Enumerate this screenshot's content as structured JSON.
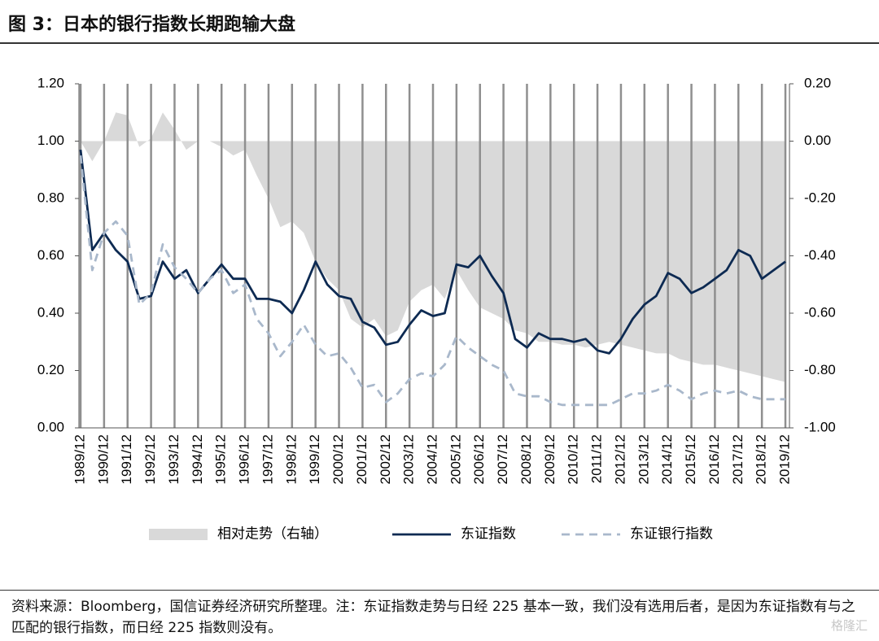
{
  "chart_data": {
    "type": "line",
    "title": "图 3：日本的银行指数长期跑输大盘",
    "source": "资料来源：Bloomberg，国信证券经济研究所整理。注：东证指数走势与日经 225 基本一致，我们没有选用后者，是因为东证指数有与之匹配的银行指数，而日经 225 指数则没有。",
    "watermark": "格隆汇",
    "categories": [
      "1989/12",
      null,
      "1990/12",
      null,
      "1991/12",
      null,
      "1992/12",
      null,
      "1993/12",
      null,
      "1994/12",
      null,
      "1995/12",
      null,
      "1996/12",
      null,
      "1997/12",
      null,
      "1998/12",
      null,
      "1999/12",
      null,
      "2000/12",
      null,
      "2001/12",
      null,
      "2002/12",
      null,
      "2003/12",
      null,
      "2004/12",
      null,
      "2005/12",
      null,
      "2006/12",
      null,
      "2007/12",
      null,
      "2008/12",
      null,
      "2009/12",
      null,
      "2010/12",
      null,
      "2011/12",
      null,
      "2012/12",
      null,
      "2013/12",
      null,
      "2014/12",
      null,
      "2015/12",
      null,
      "2016/12",
      null,
      "2017/12",
      null,
      "2018/12",
      null,
      "2019/12"
    ],
    "series": [
      {
        "name": "相对走势（右轴）",
        "type": "area",
        "axis": "y2",
        "color": "#d9d9d9",
        "values": [
          0.0,
          -0.07,
          0.0,
          0.1,
          0.09,
          -0.02,
          0.01,
          0.1,
          0.04,
          -0.03,
          0.0,
          0.0,
          -0.02,
          -0.05,
          -0.03,
          -0.12,
          -0.2,
          -0.3,
          -0.28,
          -0.32,
          -0.42,
          -0.48,
          -0.52,
          -0.62,
          -0.65,
          -0.62,
          -0.68,
          -0.66,
          -0.56,
          -0.52,
          -0.5,
          -0.55,
          -0.45,
          -0.52,
          -0.58,
          -0.6,
          -0.62,
          -0.66,
          -0.67,
          -0.7,
          -0.7,
          -0.71,
          -0.71,
          -0.72,
          -0.71,
          -0.7,
          -0.71,
          -0.72,
          -0.73,
          -0.74,
          -0.74,
          -0.76,
          -0.77,
          -0.78,
          -0.78,
          -0.79,
          -0.8,
          -0.81,
          -0.82,
          -0.83,
          -0.84
        ]
      },
      {
        "name": "东证指数",
        "type": "line",
        "color": "#0d2a52",
        "dashed": false,
        "values": [
          0.97,
          0.62,
          0.68,
          0.62,
          0.58,
          0.45,
          0.46,
          0.58,
          0.52,
          0.55,
          0.47,
          0.52,
          0.57,
          0.52,
          0.52,
          0.45,
          0.45,
          0.44,
          0.4,
          0.48,
          0.58,
          0.5,
          0.46,
          0.45,
          0.37,
          0.35,
          0.29,
          0.3,
          0.36,
          0.41,
          0.39,
          0.4,
          0.57,
          0.56,
          0.6,
          0.53,
          0.47,
          0.31,
          0.28,
          0.33,
          0.31,
          0.31,
          0.3,
          0.31,
          0.27,
          0.26,
          0.31,
          0.38,
          0.43,
          0.46,
          0.54,
          0.52,
          0.47,
          0.49,
          0.52,
          0.55,
          0.62,
          0.6,
          0.52,
          0.55,
          0.58
        ]
      },
      {
        "name": "东证银行指数",
        "type": "line",
        "color": "#a9b8cb",
        "dashed": true,
        "values": [
          0.95,
          0.55,
          0.68,
          0.72,
          0.67,
          0.43,
          0.47,
          0.64,
          0.56,
          0.52,
          0.47,
          0.52,
          0.55,
          0.47,
          0.5,
          0.38,
          0.33,
          0.25,
          0.3,
          0.36,
          0.29,
          0.25,
          0.26,
          0.21,
          0.14,
          0.15,
          0.09,
          0.12,
          0.17,
          0.19,
          0.18,
          0.22,
          0.32,
          0.28,
          0.25,
          0.22,
          0.2,
          0.12,
          0.11,
          0.11,
          0.09,
          0.08,
          0.08,
          0.08,
          0.08,
          0.08,
          0.1,
          0.12,
          0.12,
          0.13,
          0.15,
          0.13,
          0.1,
          0.12,
          0.13,
          0.12,
          0.13,
          0.11,
          0.1,
          0.1,
          0.1
        ]
      }
    ],
    "ylim": [
      0,
      1.2
    ],
    "yticks": [
      {
        "value": 0,
        "label": "0.00"
      },
      {
        "value": 0.2,
        "label": "0.20"
      },
      {
        "value": 0.4,
        "label": "0.40"
      },
      {
        "value": 0.6,
        "label": "0.60"
      },
      {
        "value": 0.8,
        "label": "0.80"
      },
      {
        "value": 1,
        "label": "1.00"
      },
      {
        "value": 1.2,
        "label": "1.20"
      }
    ],
    "y2lim": [
      -1,
      0.2
    ],
    "y2ticks": [
      {
        "value": -1,
        "label": "-1.00"
      },
      {
        "value": -0.8,
        "label": "-0.80"
      },
      {
        "value": -0.6,
        "label": "-0.60"
      },
      {
        "value": -0.4,
        "label": "-0.40"
      },
      {
        "value": -0.2,
        "label": "-0.20"
      },
      {
        "value": 0,
        "label": "0.00"
      },
      {
        "value": 0.2,
        "label": "0.20"
      }
    ],
    "vertical_grid": true,
    "legend": "bottom"
  }
}
